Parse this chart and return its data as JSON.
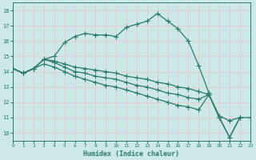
{
  "xlabel": "Humidex (Indice chaleur)",
  "ylabel": "",
  "xlim": [
    0,
    23
  ],
  "ylim": [
    9.5,
    18.5
  ],
  "yticks": [
    10,
    11,
    12,
    13,
    14,
    15,
    16,
    17,
    18
  ],
  "xticks": [
    0,
    1,
    2,
    3,
    4,
    5,
    6,
    7,
    8,
    9,
    10,
    11,
    12,
    13,
    14,
    15,
    16,
    17,
    18,
    19,
    20,
    21,
    22,
    23
  ],
  "bg_color": "#cce8e8",
  "grid_color_major": "#e8c8c8",
  "grid_color_minor": "#dce8e8",
  "line_color": "#2a7a6a",
  "line_width": 0.9,
  "marker": "+",
  "marker_size": 4.0,
  "series": [
    {
      "x": [
        0,
        1,
        2,
        3,
        4,
        5,
        6,
        7,
        8,
        9,
        10,
        11,
        12,
        13,
        14,
        15,
        16,
        17,
        18,
        19
      ],
      "y": [
        14.2,
        13.9,
        14.2,
        14.8,
        15.0,
        15.9,
        16.3,
        16.5,
        16.4,
        16.4,
        16.3,
        16.9,
        17.1,
        17.3,
        17.8,
        17.3,
        16.8,
        16.0,
        14.4,
        12.6
      ]
    },
    {
      "x": [
        0,
        1,
        2,
        3,
        4,
        5,
        6,
        7,
        8,
        9,
        10,
        11,
        12,
        13,
        14,
        15,
        16,
        17,
        18,
        19,
        20,
        21,
        22
      ],
      "y": [
        14.2,
        13.9,
        14.2,
        14.8,
        14.7,
        14.5,
        14.3,
        14.2,
        14.1,
        14.0,
        13.9,
        13.7,
        13.6,
        13.5,
        13.3,
        13.2,
        13.0,
        12.9,
        12.7,
        12.5,
        11.1,
        10.8,
        11.0
      ]
    },
    {
      "x": [
        0,
        1,
        2,
        3,
        4,
        5,
        6,
        7,
        8,
        9,
        10,
        11,
        12,
        13,
        14,
        15,
        16,
        17,
        18,
        19,
        20,
        21,
        22
      ],
      "y": [
        14.2,
        13.9,
        14.2,
        14.8,
        14.6,
        14.3,
        14.0,
        13.9,
        13.7,
        13.6,
        13.5,
        13.3,
        13.1,
        13.0,
        12.8,
        12.6,
        12.5,
        12.3,
        12.2,
        12.5,
        11.0,
        9.7,
        11.0
      ]
    },
    {
      "x": [
        0,
        1,
        2,
        3,
        4,
        5,
        6,
        7,
        8,
        9,
        10,
        11,
        12,
        13,
        14,
        15,
        16,
        17,
        18,
        19,
        20,
        21,
        22,
        23
      ],
      "y": [
        14.2,
        13.9,
        14.2,
        14.5,
        14.3,
        14.0,
        13.7,
        13.5,
        13.3,
        13.1,
        13.0,
        12.8,
        12.6,
        12.4,
        12.2,
        12.0,
        11.8,
        11.7,
        11.5,
        12.5,
        11.0,
        9.7,
        11.0,
        11.0
      ]
    }
  ]
}
